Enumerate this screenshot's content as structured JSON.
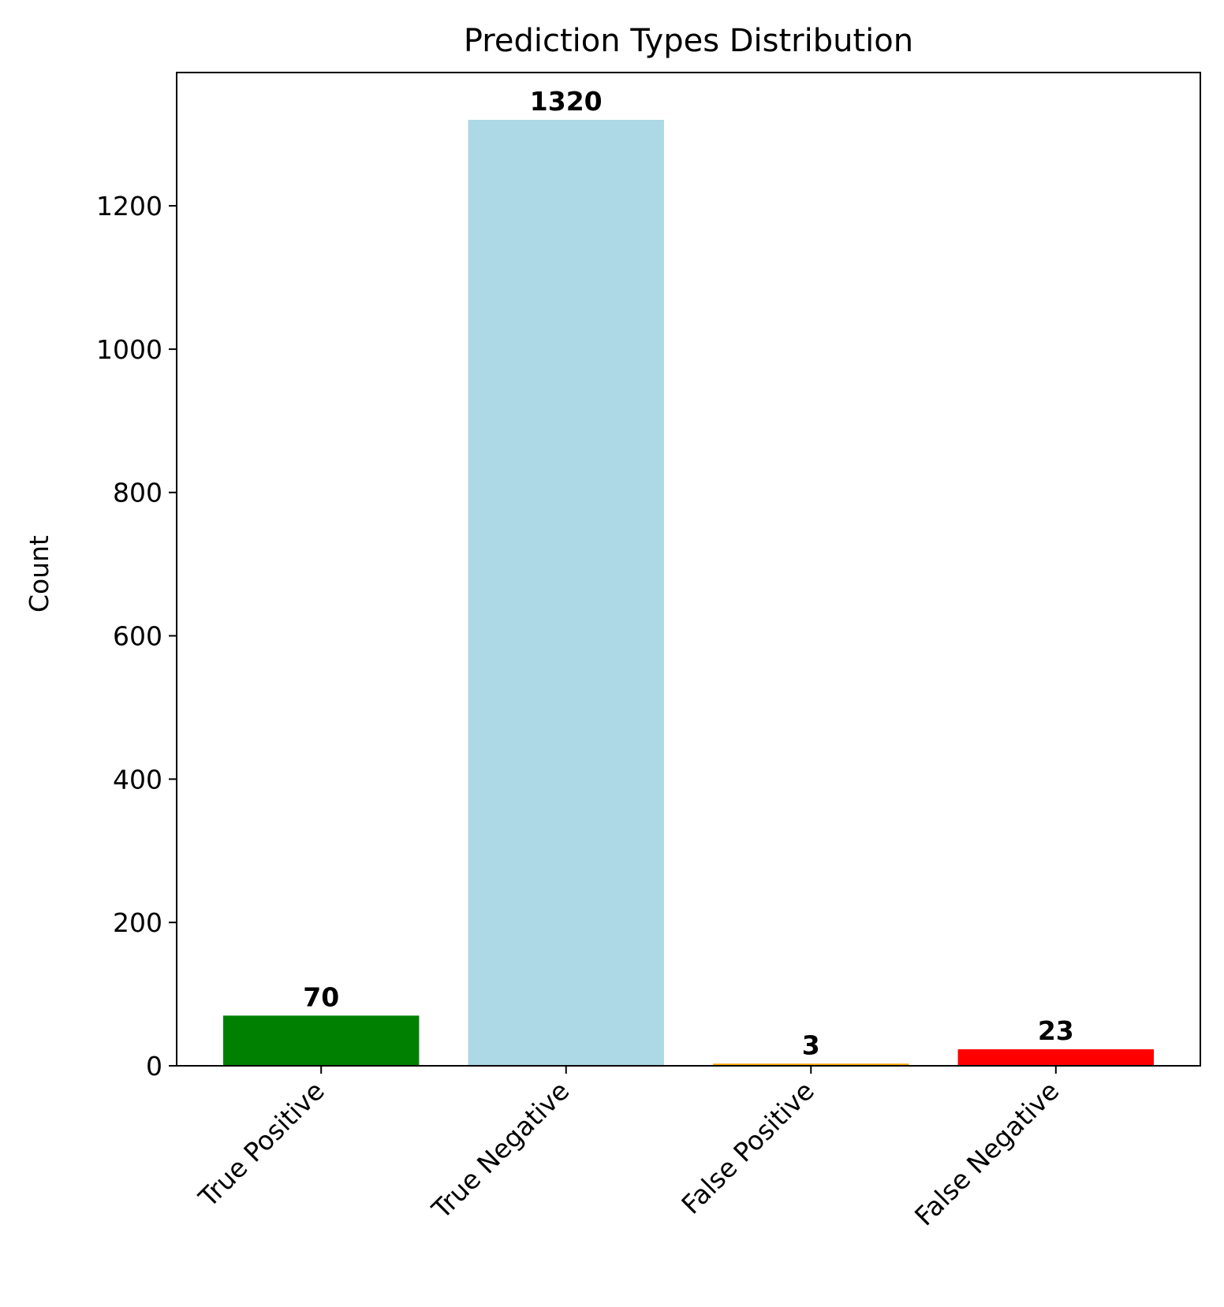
{
  "chart_data": {
    "type": "bar",
    "title": "Prediction Types Distribution",
    "xlabel": "",
    "ylabel": "Count",
    "categories": [
      "True Positive",
      "True Negative",
      "False Positive",
      "False Negative"
    ],
    "values": [
      70,
      1320,
      3,
      23
    ],
    "value_labels": [
      "70",
      "1320",
      "3",
      "23"
    ],
    "colors": [
      "#008000",
      "#add8e6",
      "#ffa500",
      "#ff0000"
    ],
    "ylim": [
      0,
      1386
    ],
    "yticks": [
      0,
      200,
      400,
      600,
      800,
      1000,
      1200
    ],
    "ytick_labels": [
      "0",
      "200",
      "400",
      "600",
      "800",
      "1000",
      "1200"
    ],
    "grid": false,
    "legend": "none"
  }
}
